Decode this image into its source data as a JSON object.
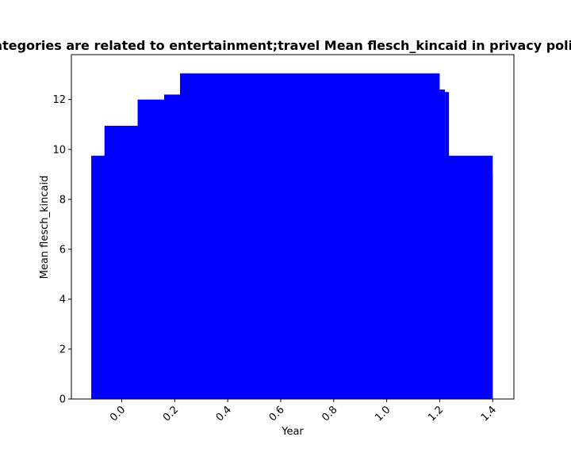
{
  "chart_data": {
    "type": "bar",
    "title": "Categories are related to entertainment;travel Mean flesch_kincaid in privacy policies",
    "xlabel": "Year",
    "ylabel": "Mean flesch_kincaid",
    "xlim": [
      -0.19,
      1.48
    ],
    "ylim": [
      0,
      13.8
    ],
    "x_ticks": [
      0.0,
      0.2,
      0.4,
      0.6,
      0.8,
      1.0,
      1.2,
      1.4
    ],
    "x_tick_labels": [
      "0.0",
      "0.2",
      "0.4",
      "0.6",
      "0.8",
      "1.0",
      "1.2",
      "1.4"
    ],
    "y_ticks": [
      0,
      2,
      4,
      6,
      8,
      10,
      12
    ],
    "y_tick_labels": [
      "0",
      "2",
      "4",
      "6",
      "8",
      "10",
      "12"
    ],
    "bar_color": "#0000ff",
    "bars": [
      {
        "x_start": -0.115,
        "x_end": 1.4,
        "value": 9.75
      },
      {
        "x_start": -0.065,
        "x_end": 1.2,
        "value": 10.95
      },
      {
        "x_start": 0.06,
        "x_end": 1.2,
        "value": 12.0
      },
      {
        "x_start": 0.16,
        "x_end": 1.2,
        "value": 12.2
      },
      {
        "x_start": 0.22,
        "x_end": 1.2,
        "value": 13.05
      },
      {
        "x_start": 1.2,
        "x_end": 1.22,
        "value": 12.4
      },
      {
        "x_start": 1.22,
        "x_end": 1.235,
        "value": 12.3
      },
      {
        "x_start": 1.235,
        "x_end": 1.4,
        "value": 8.95
      }
    ],
    "grid": false,
    "legend": "none"
  }
}
